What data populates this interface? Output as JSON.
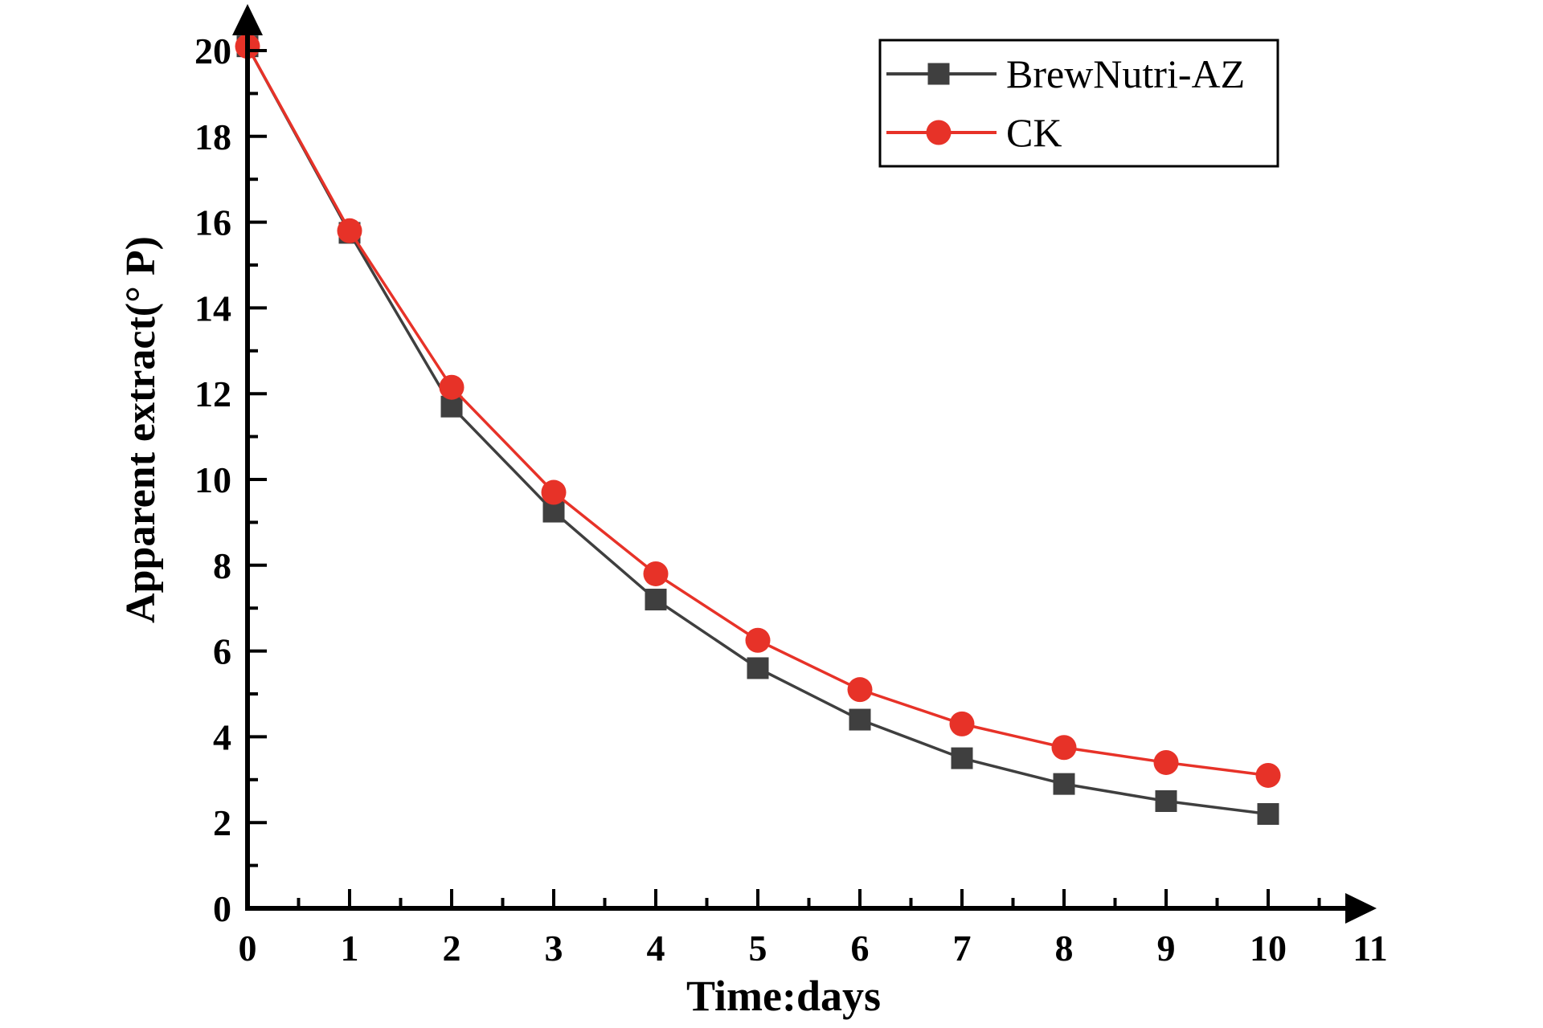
{
  "figure": {
    "background_color": "#ffffff",
    "axis_color": "#000000",
    "legend": {
      "position": "top-right",
      "border_color": "#000000",
      "fill_color": "#ffffff"
    }
  },
  "chart_data": {
    "type": "line",
    "title": "",
    "xlabel": "Time:days",
    "ylabel": "Apparent extract(° P)",
    "xlim": [
      0,
      11
    ],
    "ylim": [
      0,
      20
    ],
    "grid": false,
    "legend_position": "top-right",
    "x_tick_labels": [
      "0",
      "1",
      "2",
      "3",
      "4",
      "5",
      "6",
      "7",
      "8",
      "9",
      "10",
      "11"
    ],
    "y_tick_labels": [
      "0",
      "2",
      "4",
      "6",
      "8",
      "10",
      "12",
      "14",
      "16",
      "18",
      "20"
    ],
    "x": [
      0,
      1,
      2,
      3,
      4,
      5,
      6,
      7,
      8,
      9,
      10
    ],
    "series": [
      {
        "name": "BrewNutri-AZ",
        "color": "#3f3f3f",
        "marker": "square",
        "values": [
          20.1,
          15.75,
          11.7,
          9.25,
          7.2,
          5.6,
          4.4,
          3.5,
          2.9,
          2.5,
          2.2
        ]
      },
      {
        "name": "CK",
        "color": "#e73228",
        "marker": "circle",
        "values": [
          20.1,
          15.8,
          12.15,
          9.7,
          7.8,
          6.25,
          5.1,
          4.3,
          3.75,
          3.4,
          3.1
        ]
      }
    ]
  }
}
